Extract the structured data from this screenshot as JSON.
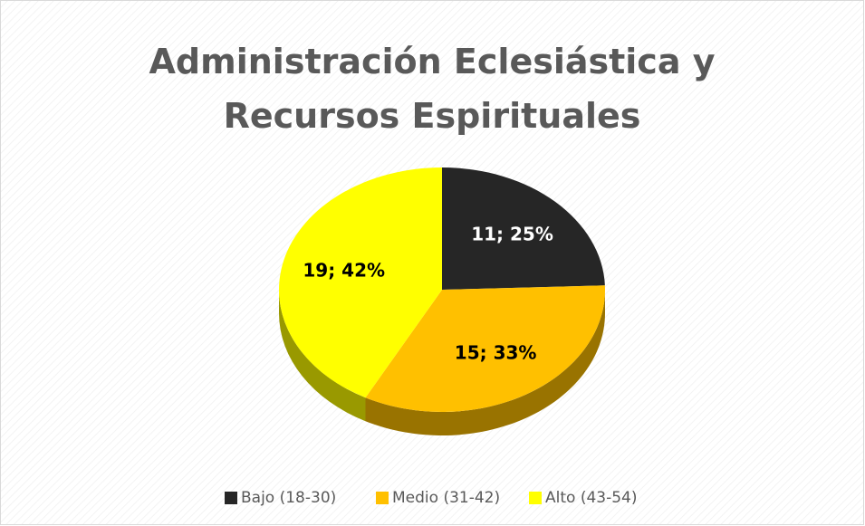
{
  "chart_data": {
    "type": "pie",
    "title": "Administración Eclesiástica y Recursos Espirituales",
    "categories": [
      "Bajo (18-30)",
      "Medio (31-42)",
      "Alto (43-54)"
    ],
    "values": [
      11,
      15,
      19
    ],
    "value_labels": [
      "11; 25%",
      "15; 33%",
      "19; 42%"
    ],
    "colors": [
      "#262626",
      "#FFC000",
      "#FFFF00"
    ],
    "legend": "bottom"
  }
}
